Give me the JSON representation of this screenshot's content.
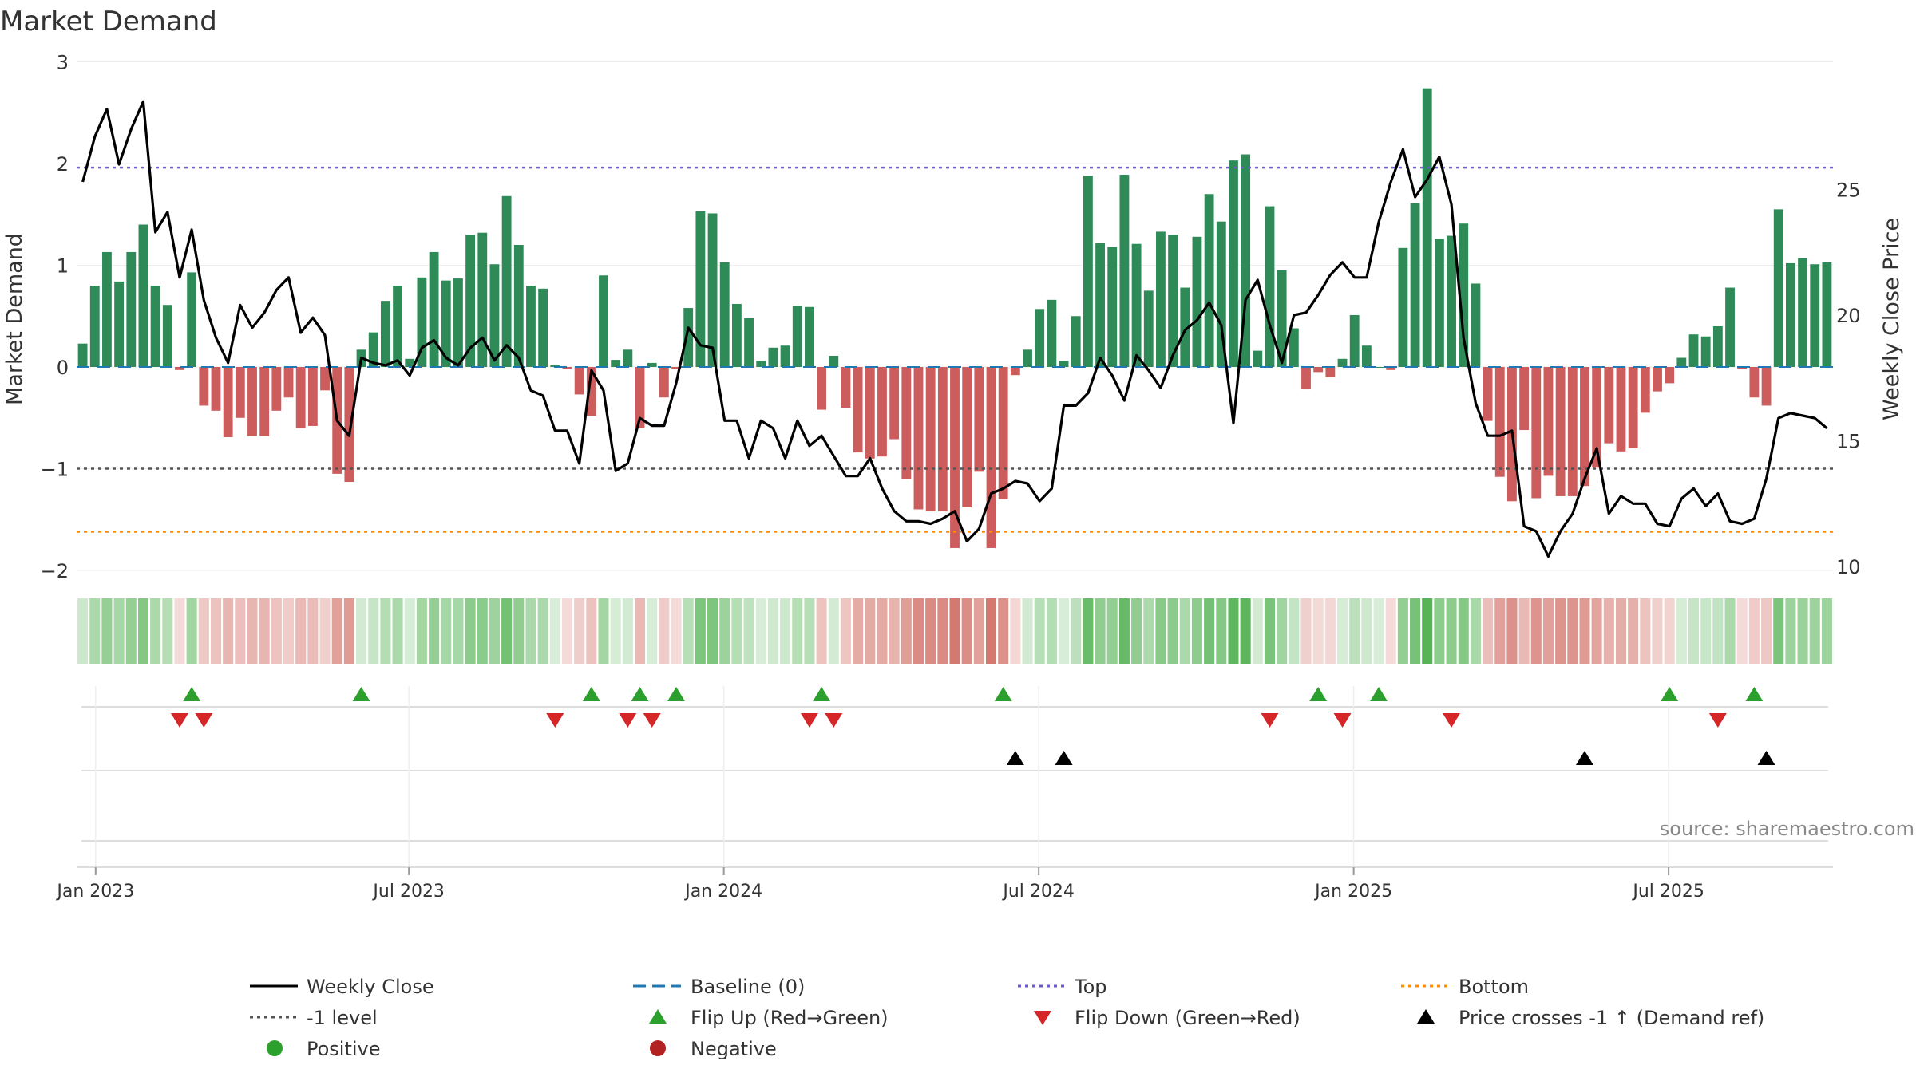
{
  "chart_data": {
    "type": "bar",
    "title": "Market Demand",
    "ylabel": "Market Demand",
    "y2label": "Weekly Close Price",
    "source": "source: sharemaestro.com",
    "ylim": [
      -2,
      3
    ],
    "y2lim": [
      10,
      30
    ],
    "yticks": [
      "3",
      "2",
      "1",
      "0",
      "−1",
      "−2"
    ],
    "y2ticks": [
      "25",
      "20",
      "15",
      "10"
    ],
    "xtick_labels": [
      "Jan 2023",
      "Jul 2023",
      "Jan 2024",
      "Jul 2024",
      "Jan 2025",
      "Jul 2025"
    ],
    "xtick_weeks": [
      1.57,
      27.43,
      53.43,
      79.43,
      105.43,
      131.43
    ],
    "levels": {
      "top": 1.96,
      "bottom": -1.62,
      "minus_one": -1.0,
      "baseline": 0
    },
    "colors": {
      "positive": "#2e8b57",
      "negative": "#cd5c5c",
      "close": "#000000",
      "baseline": "#1f77b4",
      "top": "#6a5acd",
      "bottom": "#ff8c00",
      "minus_one": "#555555",
      "flip_up": "#2ca02c",
      "flip_down": "#d62728",
      "cross": "#000000"
    },
    "demand": [
      0.23,
      0.8,
      1.13,
      0.84,
      1.13,
      1.4,
      0.8,
      0.61,
      -0.03,
      0.93,
      -0.38,
      -0.43,
      -0.69,
      -0.5,
      -0.68,
      -0.68,
      -0.43,
      -0.3,
      -0.6,
      -0.58,
      -0.23,
      -1.05,
      -1.13,
      0.17,
      0.34,
      0.65,
      0.8,
      0.08,
      0.88,
      1.13,
      0.85,
      0.87,
      1.3,
      1.32,
      1.01,
      1.68,
      1.2,
      0.8,
      0.77,
      0.02,
      -0.02,
      -0.27,
      -0.48,
      0.9,
      0.07,
      0.17,
      -0.6,
      0.04,
      -0.3,
      -0.02,
      0.58,
      1.53,
      1.51,
      1.03,
      0.62,
      0.48,
      0.06,
      0.19,
      0.21,
      0.6,
      0.59,
      -0.42,
      0.11,
      -0.4,
      -0.84,
      -0.9,
      -0.88,
      -0.71,
      -1.1,
      -1.4,
      -1.42,
      -1.42,
      -1.78,
      -1.38,
      -1.03,
      -1.78,
      -1.3,
      -0.08,
      0.17,
      0.57,
      0.66,
      0.06,
      0.5,
      1.88,
      1.22,
      1.18,
      1.89,
      1.21,
      0.75,
      1.33,
      1.3,
      0.78,
      1.28,
      1.7,
      1.43,
      2.03,
      2.09,
      0.16,
      1.58,
      0.95,
      0.38,
      -0.22,
      -0.05,
      -0.1,
      0.08,
      0.51,
      0.21,
      0.0,
      -0.03,
      1.17,
      1.61,
      2.74,
      1.26,
      1.29,
      1.41,
      0.82,
      -0.53,
      -1.08,
      -1.32,
      -0.62,
      -1.29,
      -1.07,
      -1.27,
      -1.27,
      -1.17,
      -0.99,
      -0.75,
      -0.83,
      -0.8,
      -0.45,
      -0.24,
      -0.16,
      0.09,
      0.32,
      0.3,
      0.4,
      0.78,
      -0.02,
      -0.3,
      -0.38,
      1.55,
      1.02,
      1.07,
      1.01,
      1.03
    ],
    "close": [
      25.3,
      27.1,
      28.2,
      26.0,
      27.4,
      28.5,
      23.3,
      24.1,
      21.5,
      23.4,
      20.6,
      19.1,
      18.1,
      20.4,
      19.5,
      20.1,
      21.0,
      21.5,
      19.3,
      19.9,
      19.2,
      15.8,
      15.2,
      18.3,
      18.1,
      18.0,
      18.2,
      17.6,
      18.7,
      19.0,
      18.3,
      18.0,
      18.7,
      19.1,
      18.2,
      18.8,
      18.3,
      17.0,
      16.8,
      15.4,
      15.4,
      14.1,
      17.8,
      17.0,
      13.8,
      14.1,
      15.9,
      15.6,
      15.6,
      17.3,
      19.5,
      18.8,
      18.7,
      15.8,
      15.8,
      14.3,
      15.8,
      15.5,
      14.3,
      15.8,
      14.8,
      15.2,
      14.4,
      13.6,
      13.6,
      14.3,
      13.1,
      12.2,
      11.8,
      11.8,
      11.7,
      11.9,
      12.2,
      11.0,
      11.5,
      12.9,
      13.1,
      13.4,
      13.3,
      12.6,
      13.1,
      16.4,
      16.4,
      16.9,
      18.3,
      17.6,
      16.6,
      18.4,
      17.8,
      17.1,
      18.4,
      19.4,
      19.8,
      20.5,
      19.6,
      15.7,
      20.6,
      21.4,
      19.6,
      18.1,
      20.0,
      20.1,
      20.8,
      21.6,
      22.1,
      21.5,
      21.5,
      23.7,
      25.3,
      26.6,
      24.7,
      25.4,
      26.3,
      24.4,
      19.1,
      16.5,
      15.2,
      15.2,
      15.4,
      11.6,
      11.4,
      10.4,
      11.4,
      12.1,
      13.5,
      14.7,
      12.1,
      12.8,
      12.5,
      12.5,
      11.7,
      11.6,
      12.7,
      13.1,
      12.4,
      12.9,
      11.8,
      11.7,
      11.9,
      13.5,
      15.9,
      16.1,
      16.0,
      15.9,
      15.5
    ],
    "markers": {
      "flip_up": [
        9,
        23,
        42,
        46,
        49,
        61,
        76,
        102,
        107,
        131,
        138
      ],
      "flip_down": [
        8,
        10,
        39,
        45,
        47,
        60,
        62,
        98,
        104,
        113,
        135
      ],
      "price_cross": [
        77,
        81,
        124,
        139
      ]
    },
    "legend": {
      "close": "Weekly Close",
      "baseline": "Baseline (0)",
      "top": "Top",
      "bottom": "Bottom",
      "minus_one": "-1 level",
      "flip_up": "Flip Up (Red→Green)",
      "flip_down": "Flip Down (Green→Red)",
      "price_cross": "Price crosses -1 ↑ (Demand ref)",
      "positive": "Positive",
      "negative": "Negative"
    }
  }
}
